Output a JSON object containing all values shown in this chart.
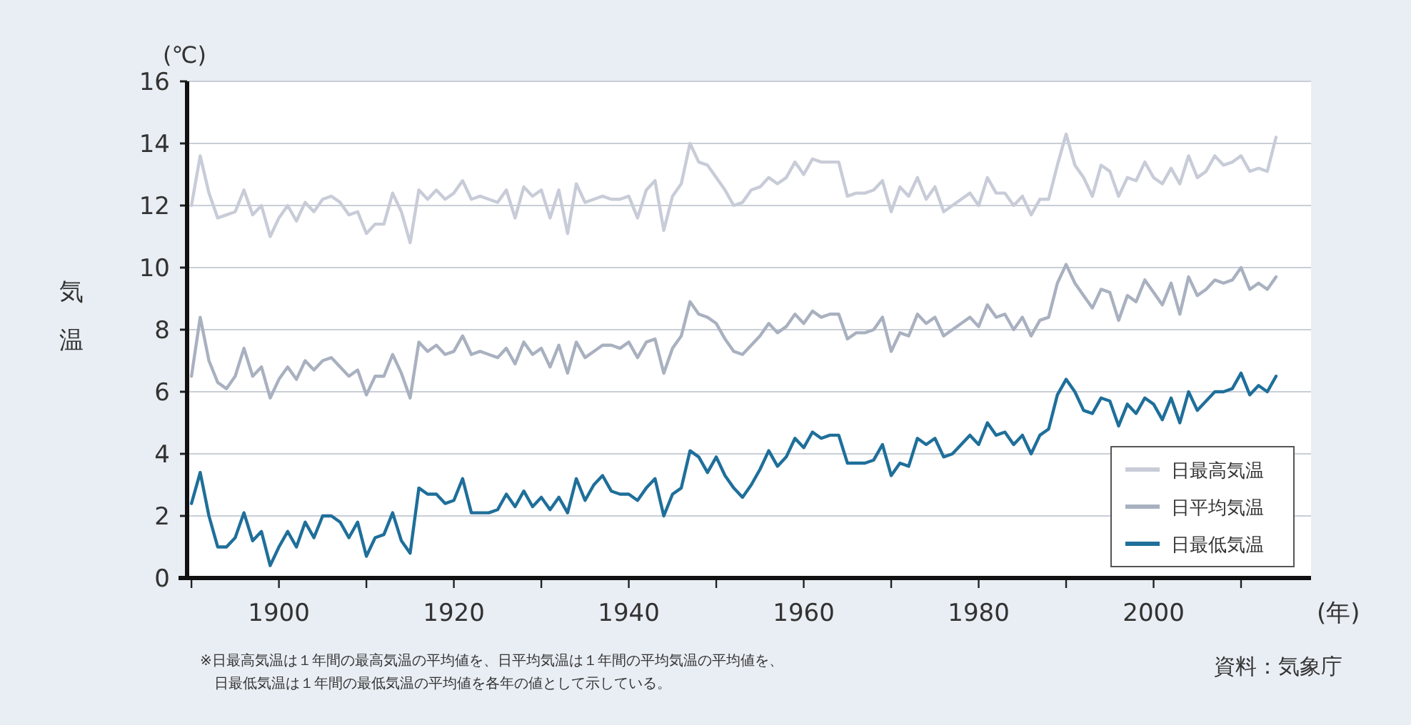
{
  "chart_data": {
    "type": "line",
    "ylabel": "気温",
    "xlabel": "(年)",
    "x": [
      1890,
      1891,
      1892,
      1893,
      1894,
      1895,
      1896,
      1897,
      1898,
      1899,
      1900,
      1901,
      1902,
      1903,
      1904,
      1905,
      1906,
      1907,
      1908,
      1909,
      1910,
      1911,
      1912,
      1913,
      1914,
      1915,
      1916,
      1917,
      1918,
      1919,
      1920,
      1921,
      1922,
      1923,
      1924,
      1925,
      1926,
      1927,
      1928,
      1929,
      1930,
      1931,
      1932,
      1933,
      1934,
      1935,
      1936,
      1937,
      1938,
      1939,
      1940,
      1941,
      1942,
      1943,
      1944,
      1945,
      1946,
      1947,
      1948,
      1949,
      1950,
      1951,
      1952,
      1953,
      1954,
      1955,
      1956,
      1957,
      1958,
      1959,
      1960,
      1961,
      1962,
      1963,
      1964,
      1965,
      1966,
      1967,
      1968,
      1969,
      1970,
      1971,
      1972,
      1973,
      1974,
      1975,
      1976,
      1977,
      1978,
      1979,
      1980,
      1981,
      1982,
      1983,
      1984,
      1985,
      1986,
      1987,
      1988,
      1989,
      1990,
      1991,
      1992,
      1993,
      1994,
      1995,
      1996,
      1997,
      1998,
      1999,
      2000,
      2001,
      2002,
      2003,
      2004,
      2005,
      2006,
      2007,
      2008,
      2009,
      2010,
      2011,
      2012,
      2013,
      2014
    ],
    "series": [
      {
        "name": "日最高気温",
        "color": "#c8ccd8",
        "values": [
          12.0,
          13.6,
          12.4,
          11.6,
          11.7,
          11.8,
          12.5,
          11.7,
          12.0,
          11.0,
          11.6,
          12.0,
          11.5,
          12.1,
          11.8,
          12.2,
          12.3,
          12.1,
          11.7,
          11.8,
          11.1,
          11.4,
          11.4,
          12.4,
          11.8,
          10.8,
          12.5,
          12.2,
          12.5,
          12.2,
          12.4,
          12.8,
          12.2,
          12.3,
          12.2,
          12.1,
          12.5,
          11.6,
          12.6,
          12.3,
          12.5,
          11.6,
          12.5,
          11.1,
          12.7,
          12.1,
          12.2,
          12.3,
          12.2,
          12.2,
          12.3,
          11.6,
          12.5,
          12.8,
          11.2,
          12.3,
          12.7,
          14.0,
          13.4,
          13.3,
          12.9,
          12.5,
          12.0,
          12.1,
          12.5,
          12.6,
          12.9,
          12.7,
          12.9,
          13.4,
          13.0,
          13.5,
          13.4,
          13.4,
          13.4,
          12.3,
          12.4,
          12.4,
          12.5,
          12.8,
          11.8,
          12.6,
          12.3,
          12.9,
          12.2,
          12.6,
          11.8,
          12.0,
          12.2,
          12.4,
          12.0,
          12.9,
          12.4,
          12.4,
          12.0,
          12.3,
          11.7,
          12.2,
          12.2,
          13.3,
          14.3,
          13.3,
          12.9,
          12.3,
          13.3,
          13.1,
          12.3,
          12.9,
          12.8,
          13.4,
          12.9,
          12.7,
          13.2,
          12.7,
          13.6,
          12.9,
          13.1,
          13.6,
          13.3,
          13.4,
          13.6,
          13.1,
          13.2,
          13.1,
          14.2
        ]
      },
      {
        "name": "日平均気温",
        "color": "#a9b1c0",
        "values": [
          6.5,
          8.4,
          7.0,
          6.3,
          6.1,
          6.5,
          7.4,
          6.5,
          6.8,
          5.8,
          6.4,
          6.8,
          6.4,
          7.0,
          6.7,
          7.0,
          7.1,
          6.8,
          6.5,
          6.7,
          5.9,
          6.5,
          6.5,
          7.2,
          6.6,
          5.8,
          7.6,
          7.3,
          7.5,
          7.2,
          7.3,
          7.8,
          7.2,
          7.3,
          7.2,
          7.1,
          7.4,
          6.9,
          7.6,
          7.2,
          7.4,
          6.8,
          7.5,
          6.6,
          7.6,
          7.1,
          7.3,
          7.5,
          7.5,
          7.4,
          7.6,
          7.1,
          7.6,
          7.7,
          6.6,
          7.4,
          7.8,
          8.9,
          8.5,
          8.4,
          8.2,
          7.7,
          7.3,
          7.2,
          7.5,
          7.8,
          8.2,
          7.9,
          8.1,
          8.5,
          8.2,
          8.6,
          8.4,
          8.5,
          8.5,
          7.7,
          7.9,
          7.9,
          8.0,
          8.4,
          7.3,
          7.9,
          7.8,
          8.5,
          8.2,
          8.4,
          7.8,
          8.0,
          8.2,
          8.4,
          8.1,
          8.8,
          8.4,
          8.5,
          8.0,
          8.4,
          7.8,
          8.3,
          8.4,
          9.5,
          10.1,
          9.5,
          9.1,
          8.7,
          9.3,
          9.2,
          8.3,
          9.1,
          8.9,
          9.6,
          9.2,
          8.8,
          9.5,
          8.5,
          9.7,
          9.1,
          9.3,
          9.6,
          9.5,
          9.6,
          10.0,
          9.3,
          9.5,
          9.3,
          9.7
        ]
      },
      {
        "name": "日最低気温",
        "color": "#1f6f9a",
        "values": [
          2.4,
          3.4,
          2.0,
          1.0,
          1.0,
          1.3,
          2.1,
          1.2,
          1.5,
          0.4,
          1.0,
          1.5,
          1.0,
          1.8,
          1.3,
          2.0,
          2.0,
          1.8,
          1.3,
          1.8,
          0.7,
          1.3,
          1.4,
          2.1,
          1.2,
          0.8,
          2.9,
          2.7,
          2.7,
          2.4,
          2.5,
          3.2,
          2.1,
          2.1,
          2.1,
          2.2,
          2.7,
          2.3,
          2.8,
          2.3,
          2.6,
          2.2,
          2.6,
          2.1,
          3.2,
          2.5,
          3.0,
          3.3,
          2.8,
          2.7,
          2.7,
          2.5,
          2.9,
          3.2,
          2.0,
          2.7,
          2.9,
          4.1,
          3.9,
          3.4,
          3.9,
          3.3,
          2.9,
          2.6,
          3.0,
          3.5,
          4.1,
          3.6,
          3.9,
          4.5,
          4.2,
          4.7,
          4.5,
          4.6,
          4.6,
          3.7,
          3.7,
          3.7,
          3.8,
          4.3,
          3.3,
          3.7,
          3.6,
          4.5,
          4.3,
          4.5,
          3.9,
          4.0,
          4.3,
          4.6,
          4.3,
          5.0,
          4.6,
          4.7,
          4.3,
          4.6,
          4.0,
          4.6,
          4.8,
          5.9,
          6.4,
          6.0,
          5.4,
          5.3,
          5.8,
          5.7,
          4.9,
          5.6,
          5.3,
          5.8,
          5.6,
          5.1,
          5.8,
          5.0,
          6.0,
          5.4,
          5.7,
          6.0,
          6.0,
          6.1,
          6.6,
          5.9,
          6.2,
          6.0,
          6.5
        ]
      }
    ],
    "xlim": [
      1889.5,
      2018
    ],
    "ylim": [
      0,
      16
    ],
    "xticks": [
      {
        "value": 1890,
        "label": null
      },
      1900,
      {
        "value": 1910,
        "label": null
      },
      1920,
      {
        "value": 1930,
        "label": null
      },
      1940,
      {
        "value": 1950,
        "label": null
      },
      1960,
      {
        "value": 1970,
        "label": null
      },
      1980,
      {
        "value": 1990,
        "label": null
      },
      2000,
      {
        "value": 2010,
        "label": null
      }
    ],
    "yticks": [
      0,
      2,
      4,
      6,
      8,
      10,
      12,
      14,
      16
    ],
    "grid": "y",
    "legend": "bottom right",
    "annotations": [
      "(℃)",
      "※日最高気温は１年間の最高気温の平均値を、日平均気温は１年間の平均気温の平均値を、",
      "日最低気温は１年間の最低気温の平均値を各年の値として示している。",
      "資料：気象庁"
    ]
  }
}
